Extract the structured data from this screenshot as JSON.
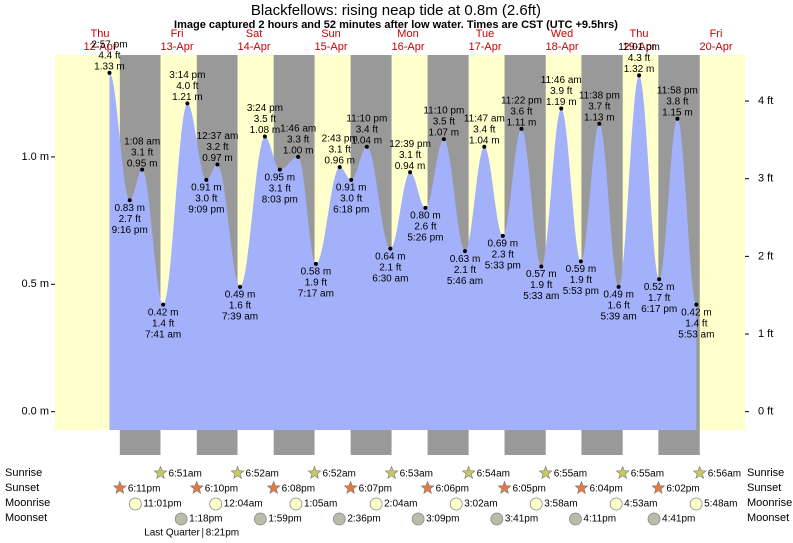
{
  "chart_data": {
    "type": "area",
    "title": "Blackfellows: rising  neap tide at 0.8m (2.6ft)",
    "subtitle": "Image captured 2 hours and 52 minutes after low water. Times are CST (UTC +9.5hrs)",
    "color": "#a3b1fb",
    "ylim": [
      -0.17,
      1.4
    ],
    "yticks": [
      {
        "value": 0,
        "label": "0.0 m"
      },
      {
        "value": 0.5,
        "label": "0.5 m"
      },
      {
        "value": 1.0,
        "label": "1.0 m"
      }
    ],
    "y2lim": [
      -0.558,
      4.593
    ],
    "y2ticks": [
      {
        "value": 0,
        "label": "0 ft"
      },
      {
        "value": 1,
        "label": "1 ft"
      },
      {
        "value": 2,
        "label": "2 ft"
      },
      {
        "value": 3,
        "label": "3 ft"
      },
      {
        "value": 4,
        "label": "4 ft"
      }
    ],
    "event_labels": [
      "Sunrise",
      "Sunset",
      "Moonrise",
      "Moonset"
    ],
    "days": [
      {
        "weekday": "Thu",
        "date": "12-Apr",
        "sunset": "6:11pm",
        "moonrise": "11:01pm",
        "tides": [
          {
            "time": "2:57 pm",
            "ft": "4.4 ft",
            "value": 1.33,
            "value_label": "1.33 m"
          },
          {
            "time": "9:16 pm",
            "ft": "2.7 ft",
            "value": 0.83,
            "value_label": "0.83 m"
          }
        ]
      },
      {
        "weekday": "Fri",
        "date": "13-Apr",
        "sunrise": "6:51am",
        "sunset": "6:10pm",
        "moonset": "1:18pm",
        "phase": "Last Quarter",
        "phase_time": "8:21pm",
        "tides": [
          {
            "time": "1:08 am",
            "ft": "3.1 ft",
            "value": 0.95,
            "value_label": "0.95 m"
          },
          {
            "time": "7:41 am",
            "ft": "1.4 ft",
            "value": 0.42,
            "value_label": "0.42 m"
          },
          {
            "time": "3:14 pm",
            "ft": "4.0 ft",
            "value": 1.21,
            "value_label": "1.21 m"
          },
          {
            "time": "9:09 pm",
            "ft": "3.0 ft",
            "value": 0.91,
            "value_label": "0.91 m"
          }
        ]
      },
      {
        "weekday": "Sat",
        "date": "14-Apr",
        "sunrise": "6:52am",
        "sunset": "6:08pm",
        "moonrise": "12:04am",
        "moonset": "1:59pm",
        "tides": [
          {
            "time": "12:37 am",
            "ft": "3.2 ft",
            "value": 0.97,
            "value_label": "0.97 m"
          },
          {
            "time": "7:39 am",
            "ft": "1.6 ft",
            "value": 0.49,
            "value_label": "0.49 m"
          },
          {
            "time": "3:24 pm",
            "ft": "3.5 ft",
            "value": 1.08,
            "value_label": "1.08 m"
          },
          {
            "time": "8:03 pm",
            "ft": "3.1 ft",
            "value": 0.95,
            "value_label": "0.95 m"
          }
        ]
      },
      {
        "weekday": "Sun",
        "date": "15-Apr",
        "sunrise": "6:52am",
        "sunset": "6:07pm",
        "moonrise": "1:05am",
        "moonset": "2:36pm",
        "tides": [
          {
            "time": "1:46 am",
            "ft": "3.3 ft",
            "value": 1.0,
            "value_label": "1.00 m"
          },
          {
            "time": "7:17 am",
            "ft": "1.9 ft",
            "value": 0.58,
            "value_label": "0.58 m"
          },
          {
            "time": "2:43 pm",
            "ft": "3.1 ft",
            "value": 0.96,
            "value_label": "0.96 m"
          },
          {
            "time": "6:18 pm",
            "ft": "3.0 ft",
            "value": 0.91,
            "value_label": "0.91 m"
          },
          {
            "time": "11:10 pm",
            "ft": "3.4 ft",
            "value": 1.04,
            "value_label": "1.04 m"
          }
        ]
      },
      {
        "weekday": "Mon",
        "date": "16-Apr",
        "sunrise": "6:53am",
        "sunset": "6:06pm",
        "moonrise": "2:04am",
        "moonset": "3:09pm",
        "tides": [
          {
            "time": "6:30 am",
            "ft": "2.1 ft",
            "value": 0.64,
            "value_label": "0.64 m"
          },
          {
            "time": "12:39 pm",
            "ft": "3.1 ft",
            "value": 0.94,
            "value_label": "0.94 m"
          },
          {
            "time": "5:26 pm",
            "ft": "2.6 ft",
            "value": 0.8,
            "value_label": "0.80 m"
          },
          {
            "time": "11:10 pm",
            "ft": "3.5 ft",
            "value": 1.07,
            "value_label": "1.07 m"
          }
        ]
      },
      {
        "weekday": "Tue",
        "date": "17-Apr",
        "sunrise": "6:54am",
        "sunset": "6:05pm",
        "moonrise": "3:02am",
        "moonset": "3:41pm",
        "tides": [
          {
            "time": "5:46 am",
            "ft": "2.1 ft",
            "value": 0.63,
            "value_label": "0.63 m"
          },
          {
            "time": "11:47 am",
            "ft": "3.4 ft",
            "value": 1.04,
            "value_label": "1.04 m"
          },
          {
            "time": "5:33 pm",
            "ft": "2.3 ft",
            "value": 0.69,
            "value_label": "0.69 m"
          },
          {
            "time": "11:22 pm",
            "ft": "3.6 ft",
            "value": 1.11,
            "value_label": "1.11 m"
          }
        ]
      },
      {
        "weekday": "Wed",
        "date": "18-Apr",
        "sunrise": "6:55am",
        "sunset": "6:04pm",
        "moonrise": "3:58am",
        "moonset": "4:11pm",
        "tides": [
          {
            "time": "5:33 am",
            "ft": "1.9 ft",
            "value": 0.57,
            "value_label": "0.57 m"
          },
          {
            "time": "11:46 am",
            "ft": "3.9 ft",
            "value": 1.19,
            "value_label": "1.19 m"
          },
          {
            "time": "5:53 pm",
            "ft": "1.9 ft",
            "value": 0.59,
            "value_label": "0.59 m"
          },
          {
            "time": "11:38 pm",
            "ft": "3.7 ft",
            "value": 1.13,
            "value_label": "1.13 m"
          }
        ]
      },
      {
        "weekday": "Thu",
        "date": "19-Apr",
        "sunrise": "6:55am",
        "sunset": "6:02pm",
        "moonrise": "4:53am",
        "moonset": "4:41pm",
        "tides": [
          {
            "time": "5:39 am",
            "ft": "1.6 ft",
            "value": 0.49,
            "value_label": "0.49 m"
          },
          {
            "time": "12:01 pm",
            "ft": "4.3 ft",
            "value": 1.32,
            "value_label": "1.32 m"
          },
          {
            "time": "6:17 pm",
            "ft": "1.7 ft",
            "value": 0.52,
            "value_label": "0.52 m"
          },
          {
            "time": "11:58 pm",
            "ft": "3.8 ft",
            "value": 1.15,
            "value_label": "1.15 m"
          }
        ]
      },
      {
        "weekday": "Fri",
        "date": "20-Apr",
        "sunrise": "6:56am",
        "moonrise": "5:48am",
        "tides": [
          {
            "time": "5:53 am",
            "ft": "1.4 ft",
            "value": 0.42,
            "value_label": "0.42 m"
          }
        ]
      }
    ]
  }
}
